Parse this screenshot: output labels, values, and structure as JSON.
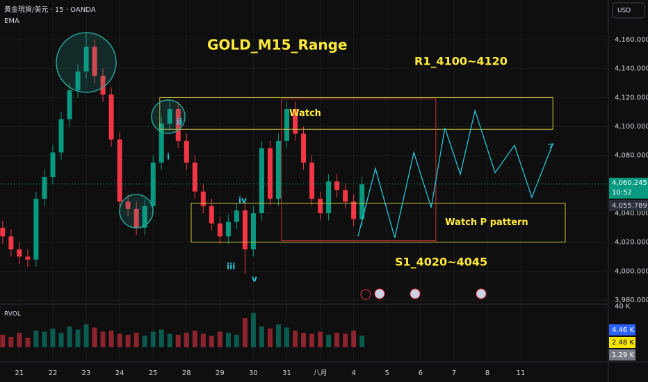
{
  "chart_data": {
    "type": "candlestick",
    "header": "黃金現貨/美元 · 15 · OANDA",
    "indicator": "EMA",
    "currency": "USD",
    "title": "GOLD_M15_Range",
    "annotations": [
      "R1_4100~4120",
      "S1_4020~4045"
    ],
    "waves": [
      "i",
      "ii",
      "iii",
      "iv",
      "v"
    ],
    "xlim": [
      -0.58,
      17.62
    ],
    "xticks": [
      {
        "value": 0,
        "label": "21"
      },
      {
        "value": 1,
        "label": "22"
      },
      {
        "value": 2,
        "label": "23"
      },
      {
        "value": 3,
        "label": "24"
      },
      {
        "value": 4,
        "label": "25"
      },
      {
        "value": 5,
        "label": "28"
      },
      {
        "value": 6,
        "label": "29"
      },
      {
        "value": 7,
        "label": "30"
      },
      {
        "value": 8,
        "label": "31"
      },
      {
        "value": 9,
        "label": "八月"
      },
      {
        "value": 10,
        "label": "4"
      },
      {
        "value": 11,
        "label": "5"
      },
      {
        "value": 12,
        "label": "6"
      },
      {
        "value": 13,
        "label": "7"
      },
      {
        "value": 14,
        "label": "8"
      },
      {
        "value": 15,
        "label": "11"
      }
    ],
    "ylim": [
      3977.6,
      4187.4
    ],
    "yticks": [
      {
        "value": 4160,
        "label": "4,160.000"
      },
      {
        "value": 4140,
        "label": "4,140.000"
      },
      {
        "value": 4120,
        "label": "4,120.000"
      },
      {
        "value": 4100,
        "label": "4,100.000"
      },
      {
        "value": 4080,
        "label": "4,080.000"
      },
      {
        "value": 4040,
        "label": "4,040.000"
      },
      {
        "value": 4020,
        "label": "4,020.000"
      },
      {
        "value": 4000,
        "label": "4,000.000"
      },
      {
        "value": 3980,
        "label": "3,980.000"
      }
    ],
    "up_color": "#089981",
    "down_color": "#f23645",
    "candles": {
      "x": [
        -0.5,
        -0.25,
        0,
        0.25,
        0.5,
        0.75,
        1,
        1.25,
        1.5,
        1.75,
        2,
        2.25,
        2.5,
        2.75,
        3,
        3.25,
        3.5,
        3.75,
        4,
        4.25,
        4.5,
        4.75,
        5,
        5.25,
        5.5,
        5.75,
        6,
        6.25,
        6.5,
        6.75,
        7,
        7.25,
        7.5,
        7.75,
        8,
        8.25,
        8.5,
        8.75,
        9,
        9.25,
        9.5,
        9.75,
        10,
        10.25
      ],
      "open": [
        4030,
        4024,
        4015,
        4010,
        4008,
        4050,
        4065,
        4082,
        4105,
        4125,
        4138,
        4155,
        4135,
        4122,
        4091,
        4048,
        4043,
        4030,
        4045,
        4075,
        4102,
        4112,
        4090,
        4075,
        4055,
        4045,
        4033,
        4024,
        4034,
        4042,
        4015,
        4040,
        4085,
        4050,
        4090,
        4112,
        4095,
        4075,
        4050,
        4040,
        4062,
        4056,
        4048,
        4036
      ],
      "high": [
        4035,
        4029,
        4020,
        4015,
        4055,
        4070,
        4087,
        4110,
        4130,
        4143,
        4165,
        4160,
        4140,
        4127,
        4096,
        4053,
        4048,
        4050,
        4080,
        4107,
        4117,
        4117,
        4095,
        4080,
        4060,
        4050,
        4038,
        4039,
        4047,
        4047,
        4045,
        4090,
        4090,
        4095,
        4117,
        4117,
        4100,
        4080,
        4055,
        4067,
        4067,
        4061,
        4053,
        4065
      ],
      "low": [
        4019,
        4010,
        4005,
        4003,
        4003,
        4045,
        4060,
        4077,
        4100,
        4120,
        4133,
        4130,
        4117,
        4086,
        4043,
        4038,
        4025,
        4025,
        4040,
        4070,
        4097,
        4085,
        4070,
        4050,
        4040,
        4028,
        4019,
        4019,
        4029,
        3998,
        4010,
        4035,
        4045,
        4045,
        4085,
        4090,
        4070,
        4045,
        4035,
        4035,
        4051,
        4043,
        4031,
        4031
      ],
      "close": [
        4024,
        4015,
        4010,
        4008,
        4050,
        4065,
        4082,
        4105,
        4125,
        4138,
        4155,
        4135,
        4122,
        4091,
        4048,
        4043,
        4030,
        4045,
        4075,
        4102,
        4112,
        4090,
        4075,
        4055,
        4045,
        4033,
        4024,
        4034,
        4042,
        4015,
        4040,
        4085,
        4050,
        4090,
        4112,
        4095,
        4075,
        4050,
        4040,
        4062,
        4056,
        4048,
        4036,
        4060
      ]
    },
    "zones": [
      {
        "label": "Watch",
        "x": [
          4.2,
          15.96
        ],
        "y": [
          4098,
          4120
        ],
        "color": "#d4c73c"
      },
      {
        "label": "Watch P pattern",
        "x": [
          5.14,
          16.33
        ],
        "y": [
          4020,
          4047
        ],
        "color": "#d4c73c"
      },
      {
        "x": [
          7.84,
          12.46
        ],
        "y": [
          4021,
          4119
        ],
        "color": "#d32f2f"
      }
    ],
    "projection": {
      "color": "#26c6da",
      "x": [
        10.13,
        10.65,
        11.23,
        11.8,
        12.32,
        12.73,
        13.19,
        13.63,
        14.23,
        14.81,
        15.33,
        15.96
      ],
      "y": [
        4024,
        4071,
        4023,
        4082,
        4044,
        4099,
        4067,
        4111,
        4068,
        4087,
        4051,
        4088
      ]
    },
    "last_price": {
      "value": 4060.245,
      "label": "4,060.245",
      "countdown": "10:52"
    },
    "ema_label": "4,055.789",
    "volume": {
      "title": "RVOL",
      "ylim": [
        0,
        40
      ],
      "yticks": [
        {
          "value": 40,
          "label": "40 K"
        }
      ],
      "values": [
        12,
        10,
        14,
        9,
        16,
        15,
        18,
        14,
        20,
        17,
        22,
        19,
        15,
        16,
        13,
        12,
        14,
        11,
        15,
        17,
        13,
        12,
        14,
        16,
        13,
        11,
        15,
        14,
        12,
        28,
        33,
        20,
        18,
        22,
        19,
        16,
        14,
        13,
        15,
        12,
        14,
        13,
        16,
        11
      ],
      "badges": [
        {
          "label": "4.46 K",
          "color": "#2962ff"
        },
        {
          "label": "2.48 K",
          "color": "#f7e600"
        },
        {
          "label": "1.29 K",
          "color": "#787b86"
        }
      ]
    }
  }
}
